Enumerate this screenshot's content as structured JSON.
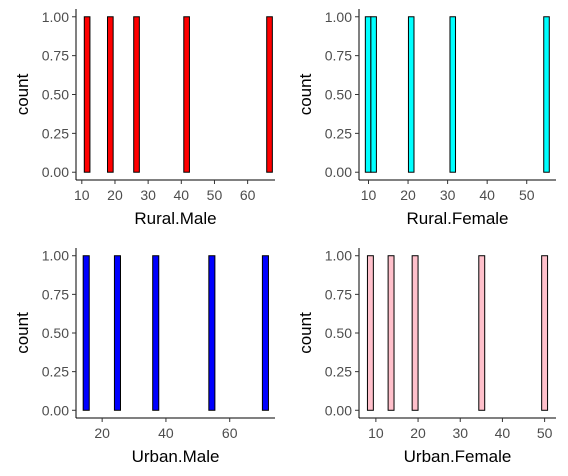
{
  "chart_data": [
    {
      "type": "bar",
      "xlabel": "Rural.Male",
      "ylabel": "count",
      "fill": "#ff0000",
      "xlim": [
        8.25,
        68.25
      ],
      "ylim": [
        -0.05,
        1.05
      ],
      "bin_width": 1.7,
      "x_ticks": [
        10,
        20,
        30,
        40,
        50,
        60
      ],
      "y_ticks": [
        0,
        0.25,
        0.5,
        0.75,
        1
      ],
      "y_tick_labels": [
        "0.00",
        "0.25",
        "0.50",
        "0.75",
        "1.00"
      ],
      "x": [
        11.6,
        18.6,
        26.5,
        41.6,
        66.6
      ],
      "values": [
        1,
        1,
        1,
        1,
        1
      ]
    },
    {
      "type": "bar",
      "xlabel": "Rural.Female",
      "ylabel": "count",
      "fill": "#00ffff",
      "xlim": [
        7.6,
        57.4
      ],
      "ylim": [
        -0.05,
        1.05
      ],
      "bin_width": 1.4,
      "x_ticks": [
        10,
        20,
        30,
        40,
        50
      ],
      "y_ticks": [
        0,
        0.25,
        0.5,
        0.75,
        1
      ],
      "y_tick_labels": [
        "0.00",
        "0.25",
        "0.50",
        "0.75",
        "1.00"
      ],
      "x": [
        9.9,
        11.3,
        20.8,
        31.3,
        55.0
      ],
      "values": [
        1,
        1,
        1,
        1,
        1
      ]
    },
    {
      "type": "bar",
      "xlabel": "Urban.Male",
      "ylabel": "count",
      "fill": "#0000ff",
      "xlim": [
        11.8,
        74.2
      ],
      "ylim": [
        -0.05,
        1.05
      ],
      "bin_width": 1.9,
      "x_ticks": [
        20,
        40,
        60
      ],
      "y_ticks": [
        0,
        0.25,
        0.5,
        0.75,
        1
      ],
      "y_tick_labels": [
        "0.00",
        "0.25",
        "0.50",
        "0.75",
        "1.00"
      ],
      "x": [
        15.0,
        24.8,
        36.8,
        54.4,
        71.2
      ],
      "values": [
        1,
        1,
        1,
        1,
        1
      ]
    },
    {
      "type": "bar",
      "xlabel": "Urban.Female",
      "ylabel": "count",
      "fill": "#ffc0cb",
      "xlim": [
        6.0,
        52.7
      ],
      "ylim": [
        -0.05,
        1.05
      ],
      "bin_width": 1.4,
      "x_ticks": [
        10,
        20,
        30,
        40,
        50
      ],
      "y_ticks": [
        0,
        0.25,
        0.5,
        0.75,
        1
      ],
      "y_tick_labels": [
        "0.00",
        "0.25",
        "0.50",
        "0.75",
        "1.00"
      ],
      "x": [
        8.7,
        13.6,
        19.3,
        35.1,
        50.0
      ],
      "values": [
        1,
        1,
        1,
        1,
        1
      ]
    }
  ]
}
